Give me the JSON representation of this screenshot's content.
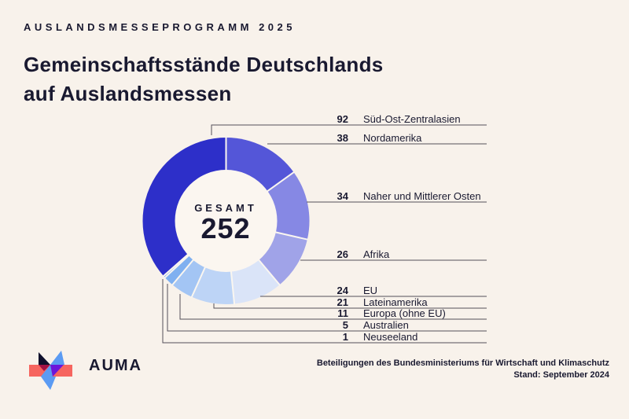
{
  "page": {
    "eyebrow": "AUSLANDSMESSEPROGRAMM 2025",
    "title_line1": "Gemeinschaftsstände Deutschlands",
    "title_line2": "auf Auslandsmessen"
  },
  "colors": {
    "background": "#F8F2EB",
    "text": "#191930",
    "donut_inner_circle": "#FBF6F0",
    "segment_gap": "#FAF6F0",
    "leader_line": "#55505A"
  },
  "chart_data": {
    "type": "pie",
    "variant": "donut",
    "title": "Gemeinschaftsstände Deutschlands auf Auslandsmessen",
    "center_label": "GESAMT",
    "total": 252,
    "start_angle_deg": 228.571,
    "clockwise": true,
    "legend_position": "right",
    "segments": [
      {
        "label": "Süd-Ost-Zentralasien",
        "value": 92,
        "color": "#2D2FC9"
      },
      {
        "label": "Nordamerika",
        "value": 38,
        "color": "#5456D8"
      },
      {
        "label": "Naher und Mittlerer Osten",
        "value": 34,
        "color": "#8688E4"
      },
      {
        "label": "Afrika",
        "value": 26,
        "color": "#A0A3E8"
      },
      {
        "label": "EU",
        "value": 24,
        "color": "#DAE4F8"
      },
      {
        "label": "Lateinamerika",
        "value": 21,
        "color": "#BDD4F6"
      },
      {
        "label": "Europa (ohne EU)",
        "value": 11,
        "color": "#A3C5F4"
      },
      {
        "label": "Australien",
        "value": 5,
        "color": "#7FB0F0"
      },
      {
        "label": "Neuseeland",
        "value": 1,
        "color": "#4F94EE"
      }
    ]
  },
  "footer": {
    "note_line1": "Beteiligungen des Bundesministeriums für Wirtschaft und Klimaschutz",
    "note_line2": "Stand: September 2024",
    "logo_text": "AUMA",
    "logo_colors": {
      "bar": "#F6655F",
      "navy": "#10102C",
      "crimson": "#A31244",
      "blue": "#5B9BF3",
      "purple": "#6C16D9"
    }
  }
}
